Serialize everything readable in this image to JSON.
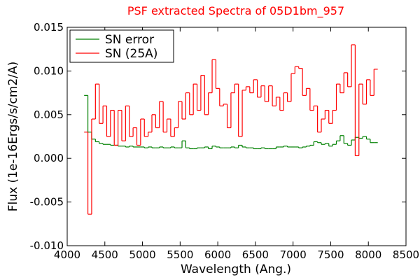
{
  "chart_data": {
    "type": "step",
    "title": "PSF extracted Spectra of 05D1bm_957",
    "title_color": "#ff0000",
    "xlabel": "Wavelength (Ang.)",
    "ylabel": "Flux (1e-16Ergs/s/cm2/A)",
    "xlim": [
      4000,
      8500
    ],
    "ylim": [
      -0.01,
      0.015
    ],
    "xticks": [
      4000,
      4500,
      5000,
      5500,
      6000,
      6500,
      7000,
      7500,
      8000,
      8500
    ],
    "yticks": [
      {
        "value": 0.015,
        "label": "0.015"
      },
      {
        "value": 0.01,
        "label": "0.010"
      },
      {
        "value": 0.005,
        "label": "0.005"
      },
      {
        "value": 0,
        "label": "0.000"
      },
      {
        "value": -0.005,
        "label": "-0.005"
      },
      {
        "value": -0.01,
        "label": "-0.010"
      }
    ],
    "legend": "upper left",
    "x": [
      4250,
      4300,
      4350,
      4400,
      4450,
      4500,
      4550,
      4600,
      4650,
      4700,
      4750,
      4800,
      4850,
      4900,
      4950,
      5000,
      5050,
      5100,
      5150,
      5200,
      5250,
      5300,
      5350,
      5400,
      5450,
      5500,
      5550,
      5600,
      5650,
      5700,
      5750,
      5800,
      5850,
      5900,
      5950,
      6000,
      6050,
      6100,
      6150,
      6200,
      6250,
      6300,
      6350,
      6400,
      6450,
      6500,
      6550,
      6600,
      6650,
      6700,
      6750,
      6800,
      6850,
      6900,
      6950,
      7000,
      7050,
      7100,
      7150,
      7200,
      7250,
      7300,
      7350,
      7400,
      7450,
      7500,
      7550,
      7600,
      7650,
      7700,
      7750,
      7800,
      7850,
      7900,
      7950,
      8000,
      8050,
      8100
    ],
    "series": [
      {
        "name": "SN error",
        "color": "#008000",
        "values": [
          0.0072,
          0.003,
          0.0022,
          0.0019,
          0.0017,
          0.0016,
          0.0016,
          0.0015,
          0.0015,
          0.0014,
          0.0014,
          0.0013,
          0.0014,
          0.0013,
          0.0013,
          0.0013,
          0.0012,
          0.0013,
          0.0012,
          0.0012,
          0.0013,
          0.0012,
          0.0012,
          0.0013,
          0.0012,
          0.0012,
          0.002,
          0.0012,
          0.0011,
          0.0011,
          0.0012,
          0.0012,
          0.0013,
          0.0011,
          0.0014,
          0.0013,
          0.0012,
          0.0012,
          0.0012,
          0.0013,
          0.0012,
          0.0015,
          0.0013,
          0.0012,
          0.0012,
          0.0011,
          0.0011,
          0.0012,
          0.0011,
          0.0011,
          0.0011,
          0.0013,
          0.0013,
          0.0014,
          0.0013,
          0.0013,
          0.0013,
          0.0012,
          0.0013,
          0.0014,
          0.0015,
          0.0019,
          0.0018,
          0.0016,
          0.0017,
          0.0014,
          0.0016,
          0.002,
          0.0026,
          0.0017,
          0.0015,
          0.0021,
          0.0024,
          0.0023,
          0.0025,
          0.0022,
          0.0018,
          0.0018
        ]
      },
      {
        "name": "SN (25A)",
        "color": "#ff0000",
        "values": [
          0.003,
          -0.0064,
          0.0045,
          0.0085,
          0.004,
          0.006,
          0.0025,
          0.0055,
          0.0015,
          0.0055,
          0.002,
          0.006,
          0.0025,
          0.0035,
          0.0015,
          0.0045,
          0.0025,
          0.003,
          0.005,
          0.0035,
          0.0065,
          0.003,
          0.0045,
          0.0025,
          0.0035,
          0.0065,
          0.0045,
          0.0075,
          0.005,
          0.0085,
          0.0055,
          0.0095,
          0.005,
          0.0075,
          0.0113,
          0.008,
          0.006,
          0.0062,
          0.0035,
          0.0075,
          0.0085,
          0.0025,
          0.0078,
          0.0082,
          0.0075,
          0.009,
          0.007,
          0.0083,
          0.0065,
          0.0083,
          0.006,
          0.007,
          0.0055,
          0.0075,
          0.0065,
          0.0097,
          0.0105,
          0.0103,
          0.0072,
          0.008,
          0.0055,
          0.006,
          0.003,
          0.0045,
          0.0055,
          0.004,
          0.0055,
          0.0085,
          0.0075,
          0.0098,
          0.0082,
          0.013,
          0.0003,
          0.0085,
          0.0062,
          0.009,
          0.0072,
          0.0102
        ]
      }
    ]
  }
}
